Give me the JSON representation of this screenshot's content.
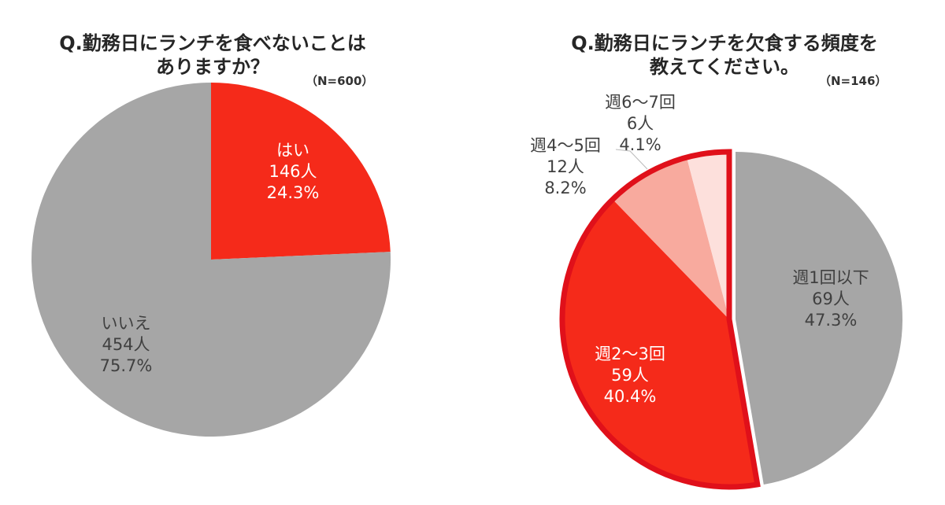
{
  "chart_data": [
    {
      "type": "pie",
      "title": "Q.勤務日にランチを食べないことはありますか？",
      "title_lines": [
        "Q.勤務日にランチを食べないことは",
        "ありますか？"
      ],
      "sample_size": "（N=600）",
      "slices": [
        {
          "label": "はい",
          "count": "146人",
          "percent_label": "24.3%",
          "value": 24.3,
          "color": "#f52a1a",
          "text_color": "#ffffff"
        },
        {
          "label": "いいえ",
          "count": "454人",
          "percent_label": "75.7%",
          "value": 75.7,
          "color": "#a6a6a6",
          "text_color": "#404040"
        }
      ]
    },
    {
      "type": "pie",
      "title": "Q.勤務日にランチを欠食する頻度を教えてください。",
      "title_lines": [
        "Q.勤務日にランチを欠食する頻度を",
        "教えてください。"
      ],
      "sample_size": "（N=146）",
      "highlight_color": "#e0101a",
      "slices": [
        {
          "label": "週1回以下",
          "count": "69人",
          "percent_label": "47.3%",
          "value": 47.3,
          "color": "#a6a6a6",
          "text_color": "#404040"
        },
        {
          "label": "週2～3回",
          "count": "59人",
          "percent_label": "40.4%",
          "value": 40.4,
          "color": "#f52a1a",
          "text_color": "#ffffff"
        },
        {
          "label": "週4～5回",
          "count": "12人",
          "percent_label": "8.2%",
          "value": 8.2,
          "color": "#f8aa9e",
          "text_color": "#404040"
        },
        {
          "label": "週6～7回",
          "count": "6人",
          "percent_label": "4.1%",
          "value": 4.1,
          "color": "#fde0dc",
          "text_color": "#404040"
        }
      ]
    }
  ]
}
